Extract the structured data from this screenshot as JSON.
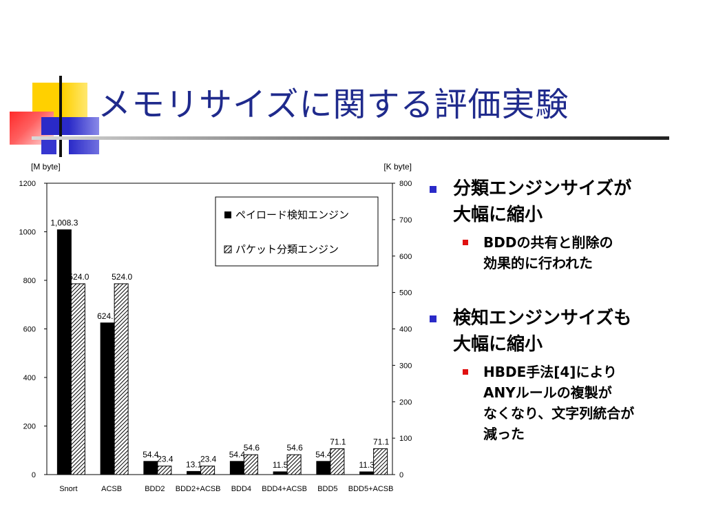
{
  "slide": {
    "title": "メモリサイズに関する評価実験"
  },
  "bullets": [
    {
      "lines": [
        "分類エンジンサイズが",
        "大幅に縮小"
      ],
      "sub": [
        {
          "lines": [
            "BDDの共有と削除の",
            "効果的に行われた"
          ]
        }
      ]
    },
    {
      "lines": [
        "検知エンジンサイズも",
        "大幅に縮小"
      ],
      "sub": [
        {
          "lines": [
            "HBDE手法[4]により",
            "ANYルールの複製が",
            "なくなり、文字列統合が",
            "減った"
          ]
        }
      ]
    }
  ],
  "colors": {
    "title": "#1f2a8c",
    "level1_marker": "#2a2ac8",
    "level2_marker": "#e01010",
    "series1": "#000000"
  },
  "chart_data": {
    "type": "bar",
    "left_unit": "[M byte]",
    "right_unit": "[K byte]",
    "categories": [
      "Snort",
      "ACSB",
      "BDD2",
      "BDD2+ACSB",
      "BDD4",
      "BDD4+ACSB",
      "BDD5",
      "BDD5+ACSB"
    ],
    "series": [
      {
        "name": "ペイロード検知エンジン",
        "axis": "left",
        "fill": "solid-black",
        "values": [
          1008.3,
          624.7,
          54.4,
          13.1,
          54.4,
          11.5,
          54.4,
          11.3
        ],
        "labels": [
          "1,008.3",
          "624.7",
          "54.4",
          "13.1",
          "54.4",
          "11.5",
          "54.4",
          "11.3"
        ]
      },
      {
        "name": "パケット分類エンジン",
        "axis": "right",
        "fill": "hatched",
        "values": [
          524.0,
          524.0,
          23.4,
          23.4,
          54.6,
          54.6,
          71.1,
          71.1
        ],
        "labels": [
          "524.0",
          "524.0",
          "23.4",
          "23.4",
          "54.6",
          "54.6",
          "71.1",
          "71.1"
        ]
      }
    ],
    "left_axis": {
      "ylim": [
        0,
        1200
      ],
      "ticks": [
        0,
        200,
        400,
        600,
        800,
        1000,
        1200
      ]
    },
    "right_axis": {
      "ylim": [
        0,
        800
      ],
      "ticks": [
        0,
        100,
        200,
        300,
        400,
        500,
        600,
        700,
        800
      ]
    },
    "grid": false,
    "legend_position": "top-right"
  }
}
